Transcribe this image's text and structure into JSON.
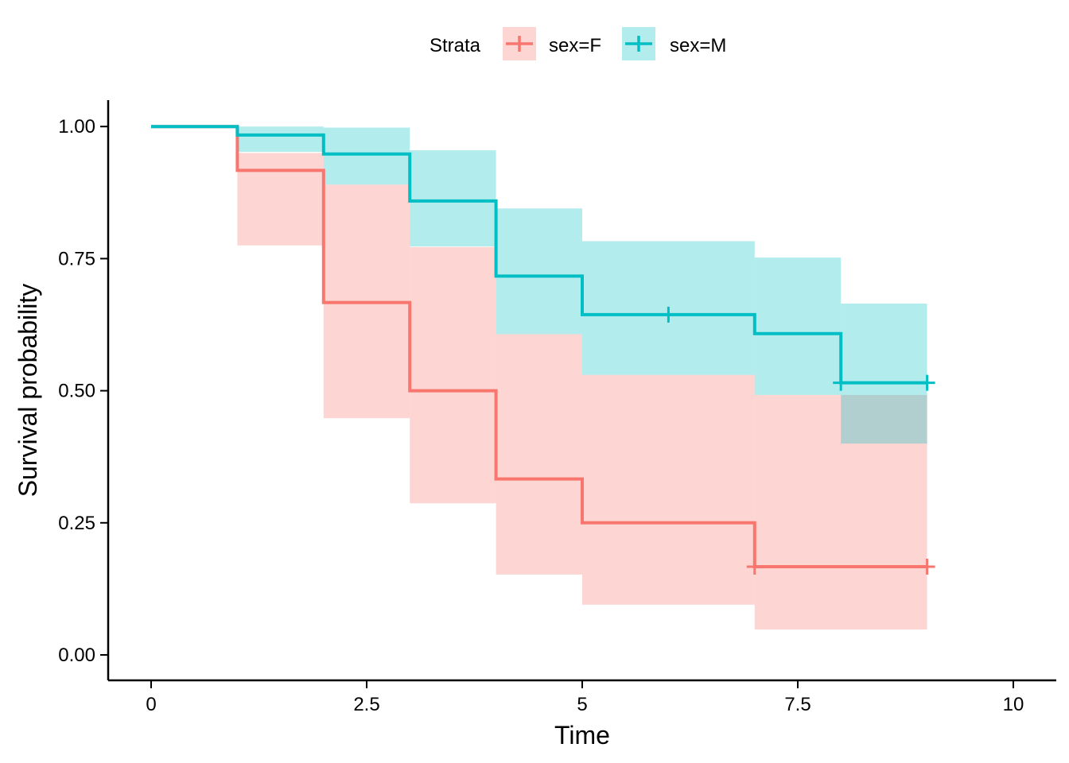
{
  "chart_data": {
    "type": "line",
    "subtype": "kaplan-meier step curve with confidence bands",
    "xlabel": "Time",
    "ylabel": "Survival probability",
    "xlim": [
      0,
      10
    ],
    "ylim": [
      0,
      1
    ],
    "x_ticks": [
      "0",
      "2.5",
      "5",
      "7.5",
      "10"
    ],
    "x_tick_values": [
      0,
      2.5,
      5,
      7.5,
      10
    ],
    "y_ticks": [
      "0.00",
      "0.25",
      "0.50",
      "0.75",
      "1.00"
    ],
    "y_tick_values": [
      0,
      0.25,
      0.5,
      0.75,
      1.0
    ],
    "grid": false,
    "legend": {
      "title": "Strata",
      "position": "top",
      "entries": [
        "sex=F",
        "sex=M"
      ]
    },
    "series": [
      {
        "name": "sex=F",
        "color": "#F8766D",
        "band_color": "#F8766D",
        "steps": [
          {
            "x0": 0,
            "x1": 1,
            "surv": 1.0,
            "lower": 1.0,
            "upper": 1.0
          },
          {
            "x0": 1,
            "x1": 2,
            "surv": 0.917,
            "lower": 0.775,
            "upper": 0.95
          },
          {
            "x0": 2,
            "x1": 3,
            "surv": 0.667,
            "lower": 0.448,
            "upper": 0.89
          },
          {
            "x0": 3,
            "x1": 4,
            "surv": 0.5,
            "lower": 0.287,
            "upper": 0.772
          },
          {
            "x0": 4,
            "x1": 5,
            "surv": 0.333,
            "lower": 0.152,
            "upper": 0.607
          },
          {
            "x0": 5,
            "x1": 7,
            "surv": 0.25,
            "lower": 0.095,
            "upper": 0.53
          },
          {
            "x0": 7,
            "x1": 9,
            "surv": 0.167,
            "lower": 0.048,
            "upper": 0.492
          }
        ],
        "censored": [
          {
            "x": 7,
            "y": 0.167
          },
          {
            "x": 9,
            "y": 0.167
          }
        ]
      },
      {
        "name": "sex=M",
        "color": "#00BFC4",
        "band_color": "#00BFC4",
        "steps": [
          {
            "x0": 0,
            "x1": 1,
            "surv": 1.0,
            "lower": 1.0,
            "upper": 1.0
          },
          {
            "x0": 1,
            "x1": 2,
            "surv": 0.984,
            "lower": 0.952,
            "upper": 1.0
          },
          {
            "x0": 2,
            "x1": 3,
            "surv": 0.948,
            "lower": 0.89,
            "upper": 0.998
          },
          {
            "x0": 3,
            "x1": 4,
            "surv": 0.859,
            "lower": 0.773,
            "upper": 0.955
          },
          {
            "x0": 4,
            "x1": 5,
            "surv": 0.717,
            "lower": 0.607,
            "upper": 0.845
          },
          {
            "x0": 5,
            "x1": 7,
            "surv": 0.644,
            "lower": 0.53,
            "upper": 0.783
          },
          {
            "x0": 7,
            "x1": 8,
            "surv": 0.608,
            "lower": 0.492,
            "upper": 0.752
          },
          {
            "x0": 8,
            "x1": 9,
            "surv": 0.515,
            "lower": 0.4,
            "upper": 0.665
          }
        ],
        "censored": [
          {
            "x": 6,
            "y": 0.644
          },
          {
            "x": 8,
            "y": 0.515
          },
          {
            "x": 9,
            "y": 0.515
          }
        ]
      }
    ]
  }
}
